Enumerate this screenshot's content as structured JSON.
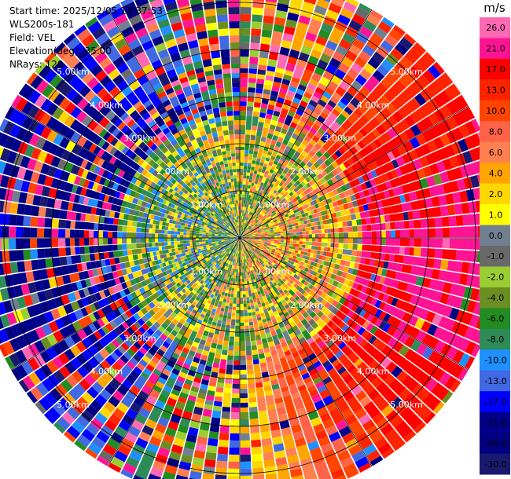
{
  "info": {
    "start_time": "Start time: 2025/12/05 14:37:53",
    "instrument": "WLS200s-181",
    "field": "Field: VEL",
    "elevation": "Elevation(deg): 35.00",
    "nrays": "NRays: 120"
  },
  "chart_data": {
    "type": "ppi",
    "field": "VEL",
    "units": "m/s",
    "nrays": 120,
    "elevation_deg": 35.0,
    "range_rings_km": [
      1,
      2,
      3,
      4,
      5
    ],
    "ring_labels": [
      "1.00km",
      "2.00km",
      "3.00km",
      "4.00km",
      "5.00km"
    ],
    "max_range_km": 5.6,
    "colorbar": {
      "title": "m/s",
      "levels": [
        26.0,
        21.0,
        17.0,
        13.0,
        10.0,
        8.0,
        6.0,
        4.0,
        2.0,
        1.0,
        0.0,
        -1.0,
        -2.0,
        -4.0,
        -6.0,
        -8.0,
        -10.0,
        -13.0,
        -17.0,
        -21.0,
        -26.0,
        -30.0
      ],
      "tick_labels": [
        "26.0",
        "21.0",
        "17.0",
        "13.0",
        "10.0",
        "8.0",
        "6.0",
        "4.0",
        "2.0",
        "1.0",
        "0.0",
        "-1.0",
        "-2.0",
        "-4.0",
        "-6.0",
        "-8.0",
        "-10.0",
        "-13.0",
        "-17.0",
        "-21.0",
        "-26.0",
        "-30.0"
      ],
      "colors": [
        "#ff69b4",
        "#ff1493",
        "#ff0000",
        "#ff2400",
        "#ff4500",
        "#ff6347",
        "#ff7f50",
        "#ffa500",
        "#ffd700",
        "#ffff00",
        "#708090",
        "#696969",
        "#9acd32",
        "#6b8e23",
        "#228b22",
        "#2e8b57",
        "#1e90ff",
        "#4169e1",
        "#0000ff",
        "#00008b",
        "#000080",
        "#191970"
      ]
    }
  }
}
